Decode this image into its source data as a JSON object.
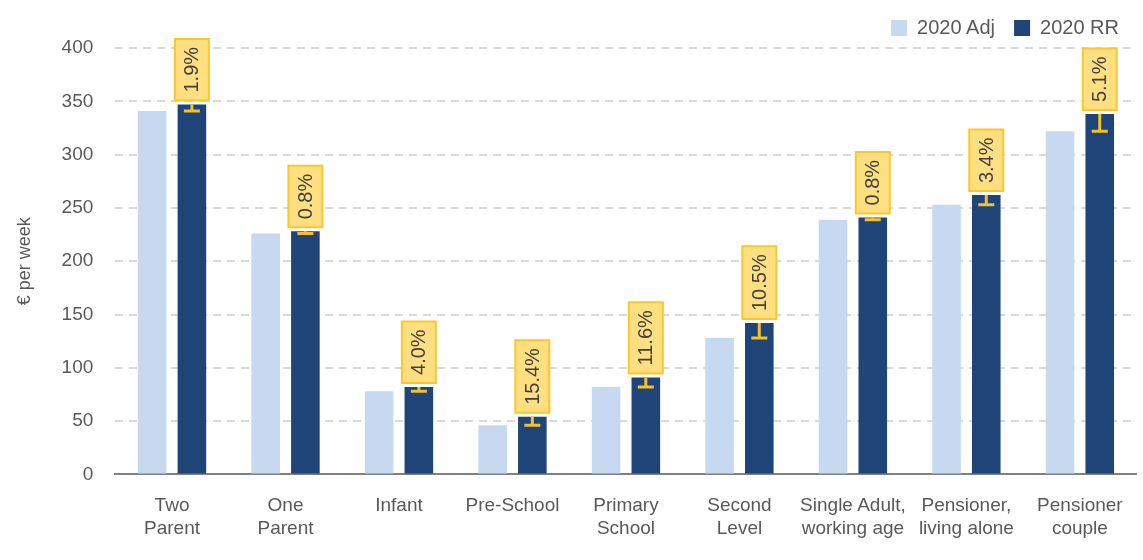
{
  "chart_data": {
    "type": "bar",
    "ylabel": "€ per week",
    "categories": [
      "Two Parent",
      "One Parent",
      "Infant",
      "Pre-School",
      "Primary School",
      "Second Level",
      "Single Adult, working age",
      "Pensioner, living alone",
      "Pensioner couple"
    ],
    "series": [
      {
        "name": "2020 Adj",
        "color": "#c6d9f1",
        "values": [
          341,
          226,
          78,
          46,
          82,
          128,
          239,
          253,
          322
        ]
      },
      {
        "name": "2020 RR",
        "color": "#1f4578",
        "values": [
          347,
          228,
          82,
          54,
          91,
          142,
          241,
          262,
          338
        ],
        "errors": [
          [
            341,
            347
          ],
          [
            226,
            228
          ],
          [
            78,
            82
          ],
          [
            46,
            54
          ],
          [
            82,
            91
          ],
          [
            128,
            142
          ],
          [
            239,
            241
          ],
          [
            253,
            262
          ],
          [
            322,
            338
          ]
        ]
      }
    ],
    "annotations": [
      "1.9%",
      "0.8%",
      "4.0%",
      "15.4%",
      "11.6%",
      "10.5%",
      "0.8%",
      "3.4%",
      "5.1%"
    ],
    "ylim": [
      0,
      400
    ],
    "yticks": [
      0,
      50,
      100,
      150,
      200,
      250,
      300,
      350,
      400
    ],
    "grid": "y",
    "legend": "top right"
  }
}
